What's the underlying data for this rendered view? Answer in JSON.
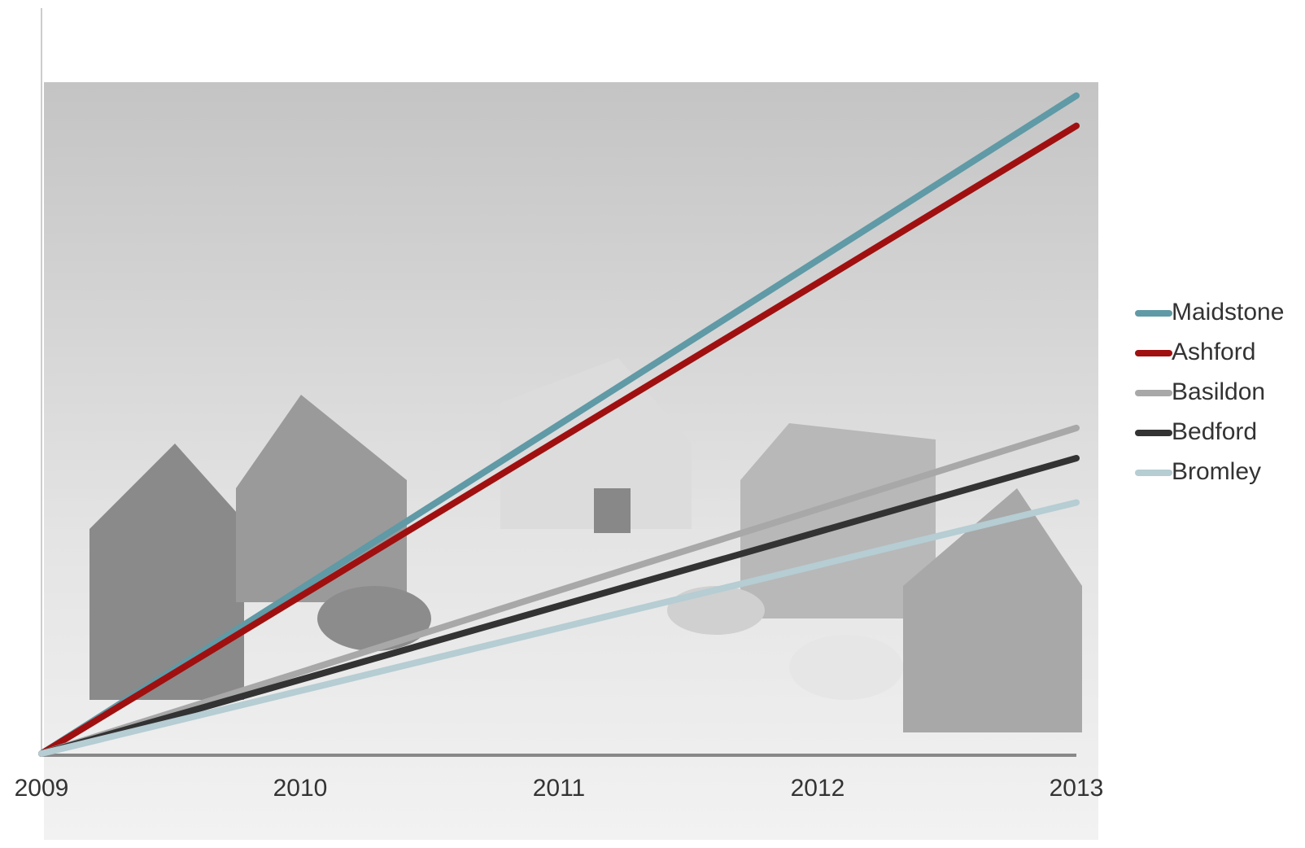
{
  "chart_data": {
    "type": "line",
    "x": [
      2009,
      2010,
      2011,
      2012,
      2013
    ],
    "xlim": [
      2009,
      2013
    ],
    "xticks": [
      2009,
      2010,
      2011,
      2012,
      2013
    ],
    "ylim": [
      0,
      100
    ],
    "legend": "right",
    "series": [
      {
        "name": "Maidstone",
        "color": "#5f9aa6",
        "values": [
          0,
          24.5,
          49,
          73.5,
          98
        ]
      },
      {
        "name": "Ashford",
        "color": "#a01010",
        "values": [
          0,
          23.4,
          46.8,
          70.1,
          93.5
        ]
      },
      {
        "name": "Basildon",
        "color": "#a8a8a8",
        "values": [
          0,
          12.1,
          24.3,
          36.4,
          48.5
        ]
      },
      {
        "name": "Bedford",
        "color": "#333333",
        "values": [
          0,
          11,
          22,
          33,
          44
        ]
      },
      {
        "name": "Bromley",
        "color": "#b5cdd3",
        "values": [
          0,
          9.35,
          18.7,
          28.05,
          37.4
        ]
      }
    ]
  }
}
